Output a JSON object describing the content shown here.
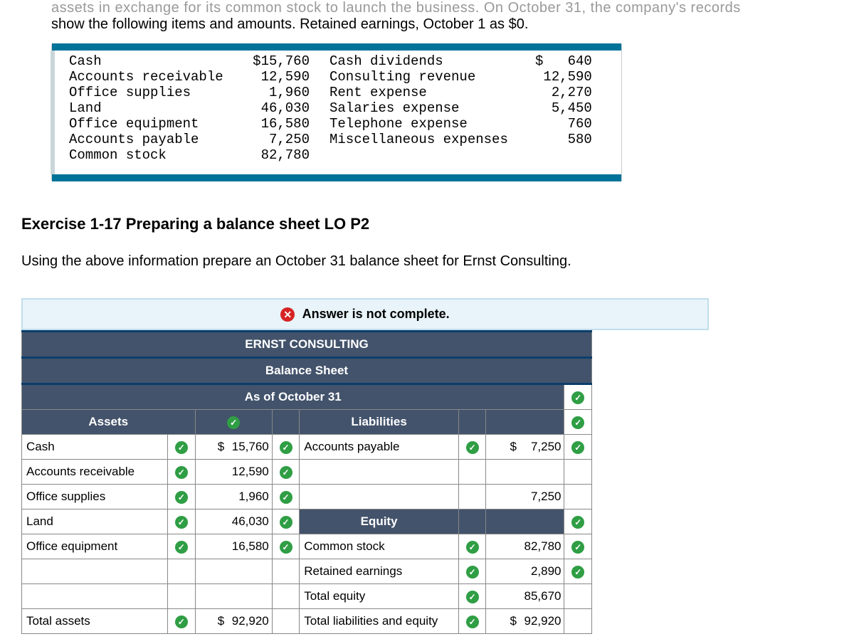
{
  "cutoff_line2": "show the following items and amounts. Retained earnings, October 1 as  $0.",
  "ledger": {
    "left": [
      {
        "label": "Cash",
        "amount": "$15,760"
      },
      {
        "label": "Accounts receivable",
        "amount": "12,590"
      },
      {
        "label": "Office supplies",
        "amount": "1,960"
      },
      {
        "label": "Land",
        "amount": "46,030"
      },
      {
        "label": "Office equipment",
        "amount": "16,580"
      },
      {
        "label": "Accounts payable",
        "amount": "7,250"
      },
      {
        "label": "Common stock",
        "amount": "82,780"
      }
    ],
    "right": [
      {
        "label": "Cash dividends",
        "amount": "$   640"
      },
      {
        "label": "Consulting revenue",
        "amount": "12,590"
      },
      {
        "label": "Rent expense",
        "amount": "2,270"
      },
      {
        "label": "Salaries expense",
        "amount": "5,450"
      },
      {
        "label": "Telephone expense",
        "amount": "760"
      },
      {
        "label": "Miscellaneous expenses",
        "amount": "580"
      }
    ]
  },
  "exercise_title": "Exercise 1-17 Preparing a balance sheet LO P2",
  "exercise_body": "Using the above information prepare an October 31 balance sheet for Ernst Consulting.",
  "status_text": "Answer is not complete.",
  "bs": {
    "company": "ERNST CONSULTING",
    "title": "Balance Sheet",
    "asof": "As of October 31",
    "assets_header": "Assets",
    "liab_header": "Liabilities",
    "equity_header": "Equity",
    "rows": {
      "r1": {
        "a_lbl": "Cash",
        "a_amt": "15,760",
        "a_cur": "$",
        "l_lbl": "Accounts payable",
        "l_amt": "7,250",
        "l_cur": "$"
      },
      "r2": {
        "a_lbl": "Accounts receivable",
        "a_amt": "12,590"
      },
      "r3": {
        "a_lbl": "Office supplies",
        "a_amt": "1,960",
        "l_amt": "7,250"
      },
      "r4": {
        "a_lbl": "Land",
        "a_amt": "46,030"
      },
      "r5": {
        "a_lbl": "Office equipment",
        "a_amt": "16,580",
        "l_lbl": "Common stock",
        "l_amt": "82,780"
      },
      "r6": {
        "l_lbl": "Retained earnings",
        "l_amt": "2,890"
      },
      "r7": {
        "l_lbl": "Total equity",
        "l_amt": "85,670"
      },
      "r8": {
        "a_lbl": "Total assets",
        "a_amt": "92,920",
        "a_cur": "$",
        "l_lbl": "Total liabilities and equity",
        "l_amt": "92,920",
        "l_cur": "$"
      }
    }
  }
}
